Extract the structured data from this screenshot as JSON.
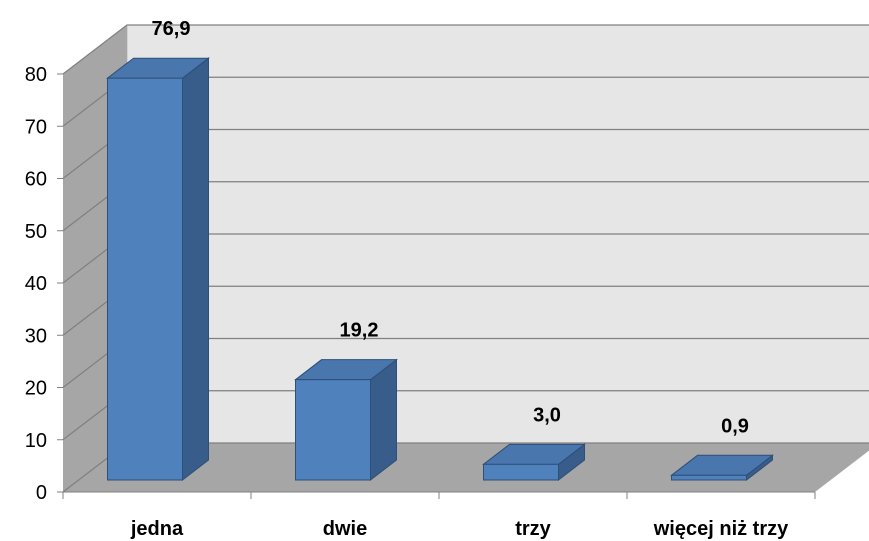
{
  "chart_data": {
    "type": "bar",
    "categories": [
      "jedna",
      "dwie",
      "trzy",
      "więcej niż trzy"
    ],
    "values": [
      76.9,
      19.2,
      3.0,
      0.9
    ],
    "data_labels": [
      "76,9",
      "19,2",
      "3,0",
      "0,9"
    ],
    "title": "",
    "xlabel": "",
    "ylabel": "",
    "ylim": [
      0,
      80
    ],
    "yticks": [
      0,
      10,
      20,
      30,
      40,
      50,
      60,
      70,
      80
    ],
    "grid": true,
    "legend": "none",
    "style": "3d-column",
    "colors": {
      "bar_front": "#4F81BD",
      "bar_side": "#385D8A",
      "bar_top": "#4A76AE",
      "bar_edge": "#2E4F78",
      "back_wall": "#E6E6E6",
      "side_wall": "#A6A6A6",
      "floor": "#A6A6A6",
      "gridline": "#808080"
    }
  }
}
